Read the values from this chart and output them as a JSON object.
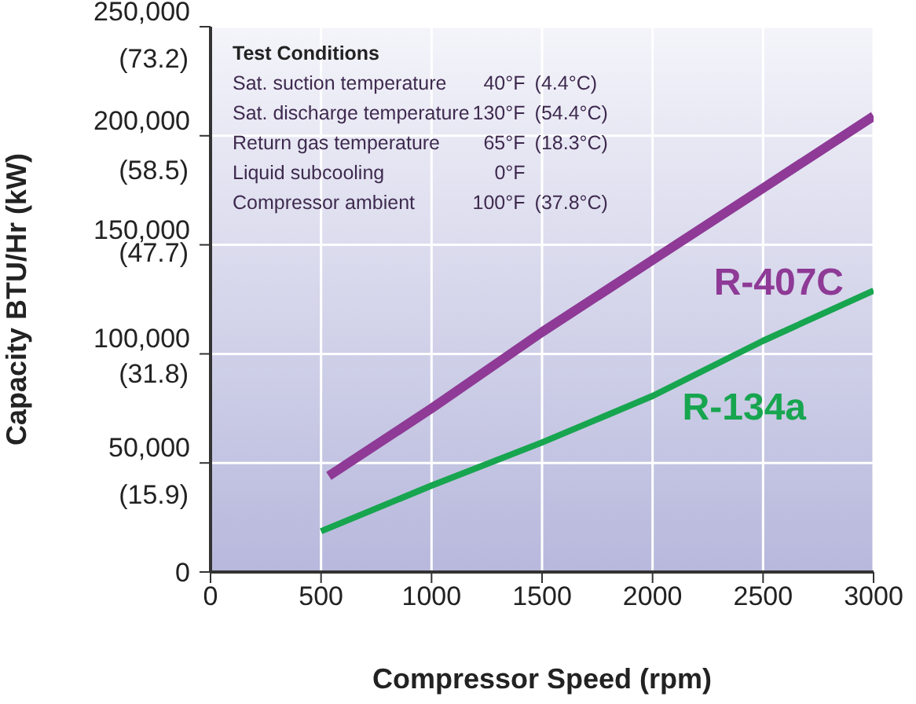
{
  "chart_data": {
    "type": "line",
    "xlabel": "Compressor Speed (rpm)",
    "ylabel": "Capacity BTU/Hr (kW)",
    "x": [
      535,
      1000,
      1500,
      2000,
      2500,
      3000
    ],
    "series": [
      {
        "name": "R-407C",
        "color": "#8e3a96",
        "values": [
          44000,
          75000,
          110000,
          143000,
          176000,
          209000
        ]
      },
      {
        "name": "R-134a",
        "color": "#17a54f",
        "x": [
          500,
          1000,
          1500,
          2000,
          2500,
          3000
        ],
        "values": [
          18700,
          39600,
          59400,
          80700,
          106000,
          129000
        ]
      }
    ],
    "xlim": [
      0,
      3000
    ],
    "xticks": [
      0,
      500,
      1000,
      1500,
      2000,
      2500,
      3000
    ],
    "ylim": [
      0,
      250000
    ],
    "yticks": [
      0,
      {
        "value": 50000,
        "label": "50,000"
      },
      {
        "value": 100000,
        "label": "100,000"
      },
      {
        "value": 150000,
        "label": "150,000"
      },
      {
        "value": 200000,
        "label": "200,000"
      },
      {
        "value": 250000,
        "label": "250,000"
      }
    ],
    "grid": true,
    "legend": false,
    "marker": "none",
    "line_style": "solid",
    "y2lim": [
      5.7,
      77.3
    ],
    "y2ticks": [
      {
        "value": 15.9,
        "label": "(15.9)"
      },
      {
        "value": 31.8,
        "label": "(31.8)"
      },
      {
        "value": 47.7,
        "label": "(47.7)"
      },
      {
        "value": 58.5,
        "label": "(58.5)"
      },
      {
        "value": 73.2,
        "label": "(73.2)"
      }
    ],
    "annotations": [
      "Test Conditions",
      "Sat. suction temperature\t40°F\t(4.4°C)",
      "Sat. discharge temperature\t130°F\t(54.4°C)",
      "Return gas temperature\t65°F\t(18.3°C)",
      "Liquid subcooling\t0°F\t",
      "Compressor ambient\t100°F\t(37.8°C)"
    ]
  }
}
